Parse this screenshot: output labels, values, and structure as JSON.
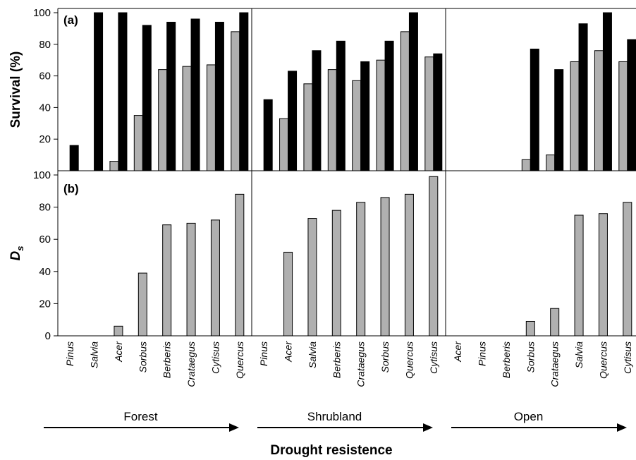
{
  "chart_data": [
    {
      "panel": "(a)",
      "type": "bar",
      "ylabel": "Survival (%)",
      "ylim": [
        0,
        100
      ],
      "yticks": [
        20,
        40,
        60,
        80,
        100
      ],
      "groups": [
        {
          "name": "Forest",
          "categories": [
            "Pinus",
            "Salvia",
            "Acer",
            "Sorbus",
            "Berberis",
            "Crataegus",
            "Cytisus",
            "Quercus"
          ],
          "series": [
            {
              "color": "#b0b0b0",
              "values": [
                0,
                0,
                6,
                35,
                64,
                66,
                67,
                88
              ]
            },
            {
              "color": "#000000",
              "values": [
                16,
                100,
                100,
                92,
                94,
                96,
                94,
                100
              ]
            }
          ]
        },
        {
          "name": "Shrubland",
          "categories": [
            "Pinus",
            "Acer",
            "Salvia",
            "Berberis",
            "Crataegus",
            "Sorbus",
            "Quercus",
            "Cytisus"
          ],
          "series": [
            {
              "color": "#b0b0b0",
              "values": [
                0,
                33,
                55,
                64,
                57,
                70,
                88,
                72
              ]
            },
            {
              "color": "#000000",
              "values": [
                45,
                63,
                76,
                82,
                69,
                82,
                100,
                74
              ]
            }
          ]
        },
        {
          "name": "Open",
          "categories": [
            "Acer",
            "Pinus",
            "Berberis",
            "Sorbus",
            "Crataegus",
            "Salvia",
            "Quercus",
            "Cytisus"
          ],
          "series": [
            {
              "color": "#b0b0b0",
              "values": [
                0,
                0,
                0,
                7,
                10,
                69,
                76,
                69
              ]
            },
            {
              "color": "#000000",
              "values": [
                0,
                0,
                0,
                77,
                64,
                93,
                100,
                83
              ]
            }
          ]
        }
      ]
    },
    {
      "panel": "(b)",
      "type": "bar",
      "ylabel": "D",
      "ylabel_sub": "s",
      "ylim": [
        0,
        100
      ],
      "yticks": [
        0,
        20,
        40,
        60,
        80,
        100
      ],
      "groups": [
        {
          "name": "Forest",
          "categories": [
            "Pinus",
            "Salvia",
            "Acer",
            "Sorbus",
            "Berberis",
            "Crataegus",
            "Cytisus",
            "Quercus"
          ],
          "series": [
            {
              "color": "#b0b0b0",
              "values": [
                0,
                0,
                6,
                39,
                69,
                70,
                72,
                88
              ]
            }
          ]
        },
        {
          "name": "Shrubland",
          "categories": [
            "Pinus",
            "Acer",
            "Salvia",
            "Berberis",
            "Crataegus",
            "Sorbus",
            "Quercus",
            "Cytisus"
          ],
          "series": [
            {
              "color": "#b0b0b0",
              "values": [
                0,
                52,
                73,
                78,
                83,
                86,
                88,
                99
              ]
            }
          ]
        },
        {
          "name": "Open",
          "categories": [
            "Acer",
            "Pinus",
            "Berberis",
            "Sorbus",
            "Crataegus",
            "Salvia",
            "Quercus",
            "Cytisus"
          ],
          "series": [
            {
              "color": "#b0b0b0",
              "values": [
                0,
                0,
                0,
                9,
                17,
                75,
                76,
                83
              ]
            }
          ]
        }
      ]
    }
  ],
  "habitats": [
    "Forest",
    "Shrubland",
    "Open"
  ],
  "xlabel": "Drought resistence"
}
